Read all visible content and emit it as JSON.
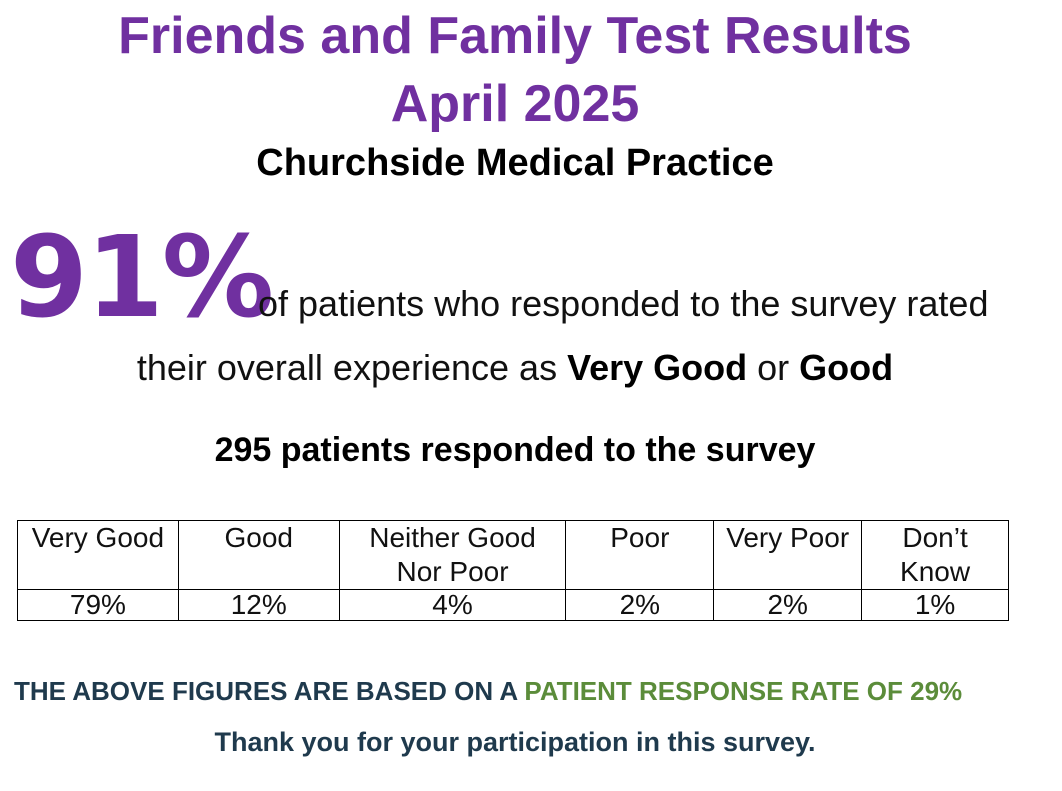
{
  "header": {
    "title": "Friends and Family Test Results",
    "period": "April 2025",
    "practice": "Churchside Medical Practice"
  },
  "headline": {
    "percent": "91%",
    "text_line1": "of patients who responded to the survey rated",
    "text_line2_prefix": "their overall experience as ",
    "text_line2_bold1": "Very Good",
    "text_line2_mid": " or ",
    "text_line2_bold2": "Good"
  },
  "responded": "295 patients responded to the survey",
  "results": {
    "columns": [
      "Very Good",
      "Good",
      "Neither Good Nor Poor",
      "Poor",
      "Very Poor",
      "Don’t Know"
    ],
    "values": [
      "79%",
      "12%",
      "4%",
      "2%",
      "2%",
      "1%"
    ]
  },
  "footer": {
    "basis_prefix": "THE ABOVE FIGURES ARE BASED ON A ",
    "basis_highlight": "PATIENT RESPONSE RATE OF 29%",
    "thanks": "Thank you for your participation in this survey."
  },
  "colors": {
    "title": "#7030a0",
    "footer_text": "#1f3a4d",
    "footer_highlight": "#5b8c3a"
  }
}
